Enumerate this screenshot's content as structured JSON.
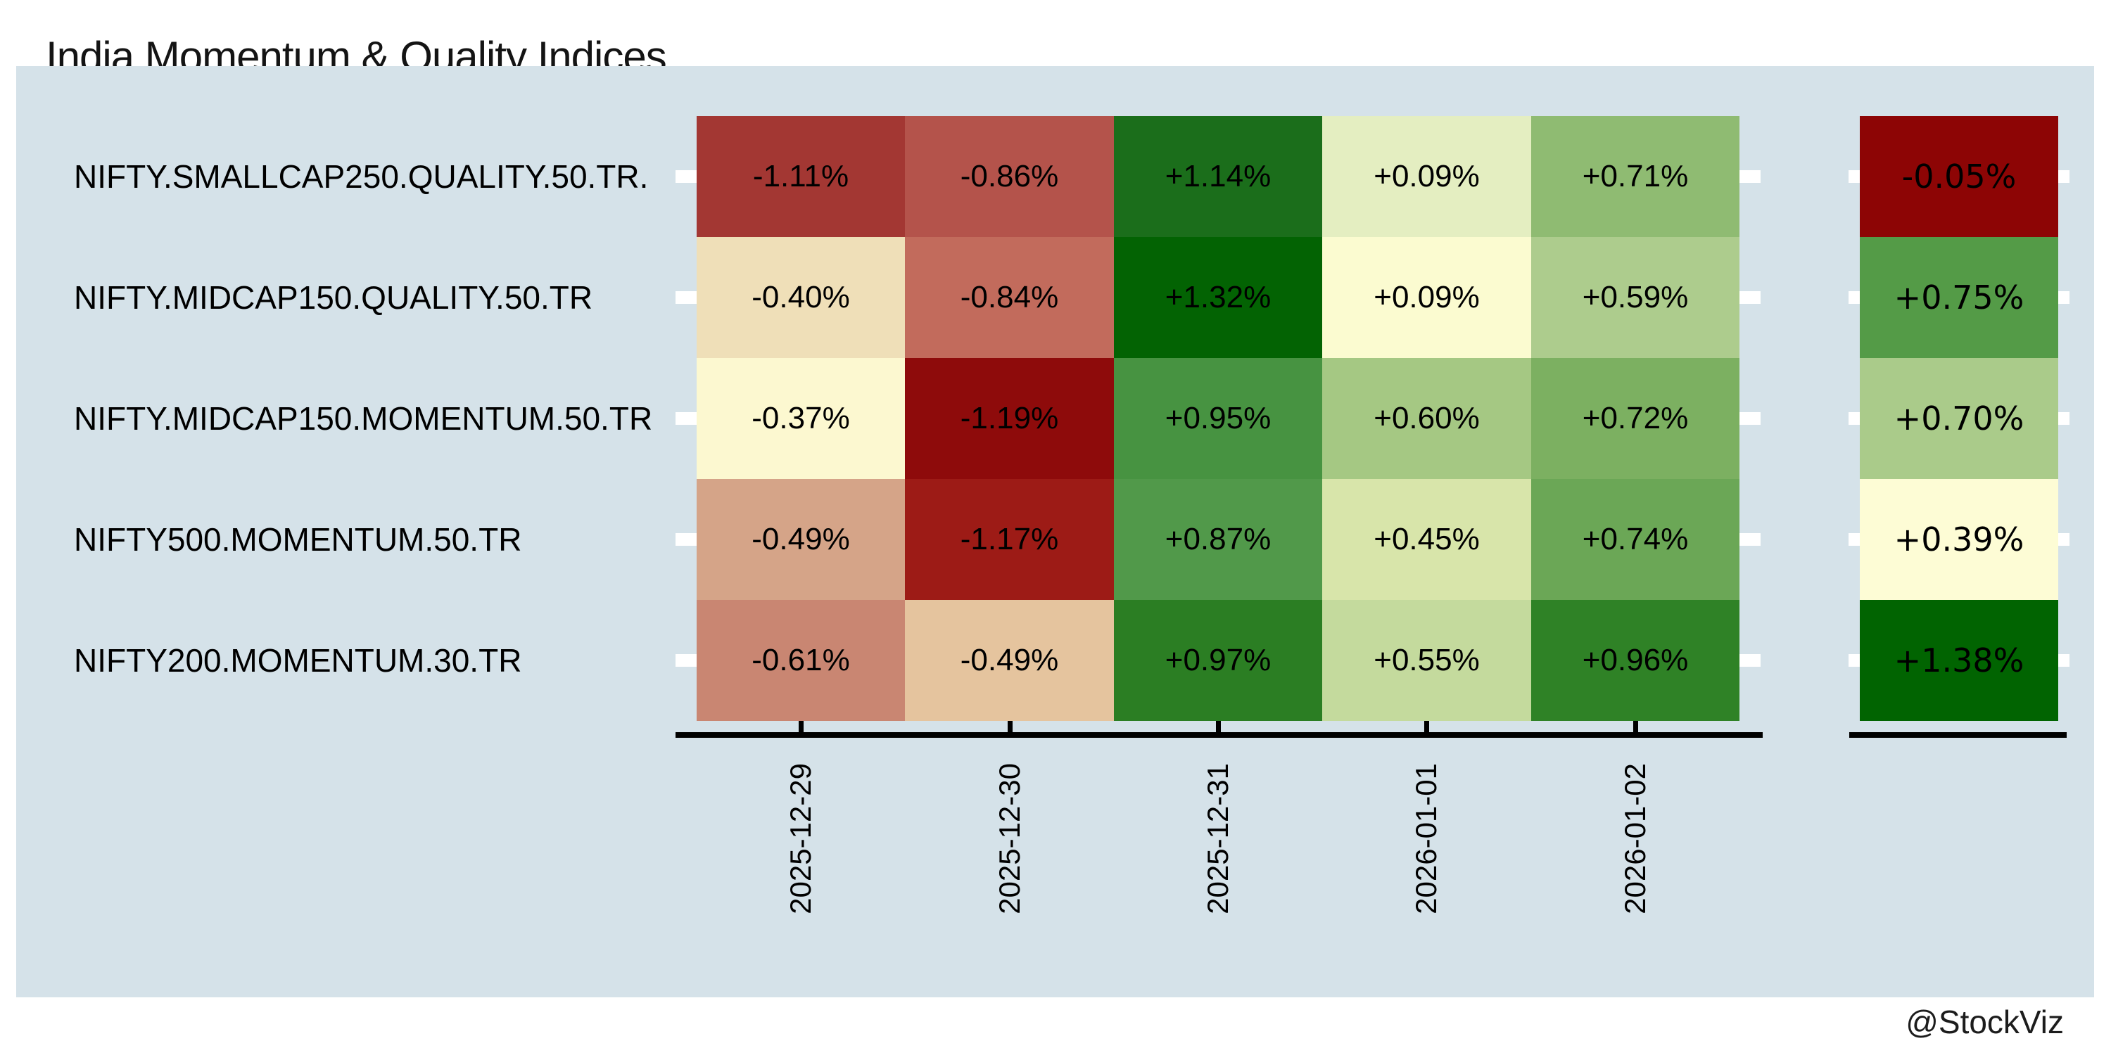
{
  "title": "India Momentum & Quality Indices",
  "watermark": "@StockViz",
  "colors": {
    "page_bg": "#ffffff",
    "panel_bg": "#d5e2e9",
    "axis": "#000000",
    "tick_mark_white": "#ffffff",
    "cell_text": "#000000"
  },
  "chart_data": {
    "type": "heatmap",
    "title": "India Momentum & Quality Indices",
    "rows": [
      "NIFTY.SMALLCAP250.QUALITY.50.TR.",
      "NIFTY.MIDCAP150.QUALITY.50.TR",
      "NIFTY.MIDCAP150.MOMENTUM.50.TR",
      "NIFTY500.MOMENTUM.50.TR",
      "NIFTY200.MOMENTUM.30.TR"
    ],
    "columns": [
      "2025-12-29",
      "2025-12-30",
      "2025-12-31",
      "2026-01-01",
      "2026-01-02"
    ],
    "values_pct": [
      [
        -1.11,
        -0.86,
        1.14,
        0.09,
        0.71
      ],
      [
        -0.4,
        -0.84,
        1.32,
        0.09,
        0.59
      ],
      [
        -0.37,
        -1.19,
        0.95,
        0.6,
        0.72
      ],
      [
        -0.49,
        -1.17,
        0.87,
        0.45,
        0.74
      ],
      [
        -0.61,
        -0.49,
        0.97,
        0.55,
        0.96
      ]
    ],
    "cell_labels": [
      [
        "-1.11%",
        "-0.86%",
        "+1.14%",
        "+0.09%",
        "+0.71%"
      ],
      [
        "-0.40%",
        "-0.84%",
        "+1.32%",
        "+0.09%",
        "+0.59%"
      ],
      [
        "-0.37%",
        "-1.19%",
        "+0.95%",
        "+0.60%",
        "+0.72%"
      ],
      [
        "-0.49%",
        "-1.17%",
        "+0.87%",
        "+0.45%",
        "+0.74%"
      ],
      [
        "-0.61%",
        "-0.49%",
        "+0.97%",
        "+0.55%",
        "+0.96%"
      ]
    ],
    "cell_colors": [
      [
        "#a33733",
        "#b4534b",
        "#1b6e1b",
        "#e4eec1",
        "#8fbb72"
      ],
      [
        "#efdfb8",
        "#c26b5c",
        "#036303",
        "#fbfbd0",
        "#adcc8d"
      ],
      [
        "#fcf8d0",
        "#8e0b0b",
        "#479341",
        "#a5c883",
        "#7cb061"
      ],
      [
        "#d5a488",
        "#9d1b16",
        "#51994a",
        "#d8e5aa",
        "#6ba756"
      ],
      [
        "#c98672",
        "#e5c49e",
        "#2b7e23",
        "#c4da9d",
        "#2f8226"
      ]
    ],
    "summary_column": {
      "labels": [
        "-0.05%",
        "+0.75%",
        "+0.70%",
        "+0.39%",
        "+1.38%"
      ],
      "values_pct": [
        -0.05,
        0.75,
        0.7,
        0.39,
        1.38
      ],
      "colors": [
        "#8d0505",
        "#549b47",
        "#aacb8a",
        "#fdfcd5",
        "#016401"
      ]
    },
    "colormap": "red-yellow-green, normalized per row",
    "legend": "none",
    "grid": "off"
  }
}
